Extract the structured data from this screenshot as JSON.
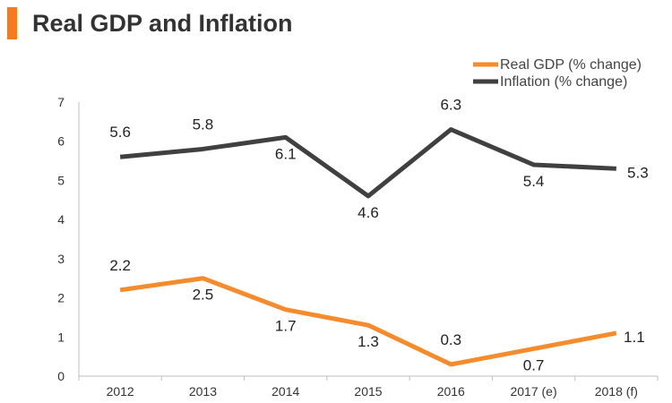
{
  "header": {
    "title": "Real GDP and Inflation",
    "accent_color": "#f47b20"
  },
  "chart_data": {
    "type": "line",
    "title": "Real GDP and Inflation",
    "xlabel": "",
    "ylabel": "",
    "categories": [
      "2012",
      "2013",
      "2014",
      "2015",
      "2016",
      "2017 (e)",
      "2018 (f)"
    ],
    "ylim": [
      0,
      7
    ],
    "yticks": [
      "0",
      "1",
      "2",
      "3",
      "4",
      "5",
      "6",
      "7"
    ],
    "grid": false,
    "legend_position": "top-right",
    "series": [
      {
        "name": "Real GDP (% change)",
        "color": "#f68b2c",
        "values": [
          2.2,
          2.5,
          1.7,
          1.3,
          0.3,
          0.7,
          1.1
        ],
        "labels": [
          "2.2",
          "2.5",
          "1.7",
          "1.3",
          "0.3",
          "0.7",
          "1.1"
        ]
      },
      {
        "name": "Inflation (% change)",
        "color": "#404040",
        "values": [
          5.6,
          5.8,
          6.1,
          4.6,
          6.3,
          5.4,
          5.3
        ],
        "labels": [
          "5.6",
          "5.8",
          "6.1",
          "4.6",
          "6.3",
          "5.4",
          "5.3"
        ]
      }
    ]
  }
}
